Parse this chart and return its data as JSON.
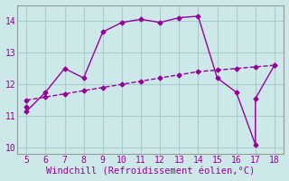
{
  "main_x": [
    5,
    5,
    6,
    7,
    8,
    9,
    10,
    11,
    12,
    13,
    14,
    15,
    16,
    17,
    17,
    18
  ],
  "main_y": [
    11.3,
    11.15,
    11.75,
    12.5,
    12.2,
    13.65,
    13.95,
    14.05,
    13.95,
    14.1,
    14.15,
    12.2,
    11.75,
    10.1,
    11.55,
    12.6
  ],
  "trend_x": [
    5,
    6,
    7,
    8,
    9,
    10,
    11,
    12,
    13,
    14,
    15,
    16,
    17,
    18
  ],
  "trend_y": [
    11.5,
    11.6,
    11.7,
    11.8,
    11.9,
    12.0,
    12.1,
    12.2,
    12.3,
    12.4,
    12.45,
    12.5,
    12.55,
    12.6
  ],
  "line_color": "#990099",
  "bg_color": "#cce8e8",
  "grid_color": "#aacccc",
  "xlabel": "Windchill (Refroidissement éolien,°C)",
  "ylim": [
    9.8,
    14.5
  ],
  "xlim": [
    4.5,
    18.5
  ],
  "yticks": [
    10,
    11,
    12,
    13,
    14
  ],
  "xticks": [
    5,
    6,
    7,
    8,
    9,
    10,
    11,
    12,
    13,
    14,
    15,
    16,
    17,
    18
  ],
  "marker": "D",
  "marker_size": 2.5,
  "line_width": 1.0,
  "xlabel_fontsize": 7.5,
  "tick_fontsize": 7
}
